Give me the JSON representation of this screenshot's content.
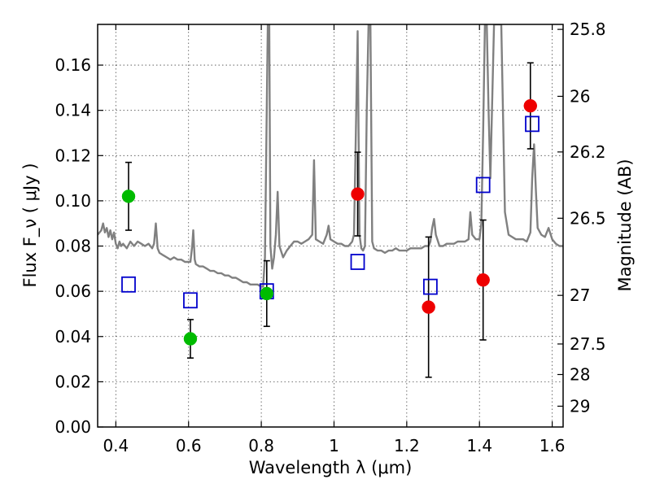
{
  "chart_data": {
    "type": "scatter",
    "xlabel": "Wavelength  λ (μm)",
    "ylabel": "Flux  F_ν  ( μJy )",
    "ylabel_right": "Magnitude (AB)",
    "xlim": [
      0.35,
      1.63
    ],
    "ylim": [
      0.0,
      0.178
    ],
    "grid": true,
    "x_ticks": [
      0.4,
      0.6,
      0.8,
      1.0,
      1.2,
      1.4,
      1.6
    ],
    "x_tick_labels": [
      "0.4",
      "0.6",
      "0.8",
      "1",
      "1.2",
      "1.4",
      "1.6"
    ],
    "y_ticks": [
      0.0,
      0.02,
      0.04,
      0.06,
      0.08,
      0.1,
      0.12,
      0.14,
      0.16
    ],
    "y_tick_labels": [
      "0.00",
      "0.02",
      "0.04",
      "0.06",
      "0.08",
      "0.10",
      "0.12",
      "0.14",
      "0.16"
    ],
    "right_ticks": [
      {
        "mag": "25.8",
        "flux": 0.1758
      },
      {
        "mag": "26",
        "flux": 0.1462
      },
      {
        "mag": "26.2",
        "flux": 0.1216
      },
      {
        "mag": "26.5",
        "flux": 0.0923
      },
      {
        "mag": "27",
        "flux": 0.0582
      },
      {
        "mag": "27.5",
        "flux": 0.0367
      },
      {
        "mag": "28",
        "flux": 0.0232
      },
      {
        "mag": "29",
        "flux": 0.0092
      }
    ],
    "model_spectrum": {
      "color": "#808080",
      "points": [
        [
          0.35,
          0.085
        ],
        [
          0.36,
          0.087
        ],
        [
          0.365,
          0.09
        ],
        [
          0.37,
          0.086
        ],
        [
          0.375,
          0.088
        ],
        [
          0.38,
          0.084
        ],
        [
          0.385,
          0.087
        ],
        [
          0.39,
          0.083
        ],
        [
          0.395,
          0.086
        ],
        [
          0.4,
          0.081
        ],
        [
          0.405,
          0.079
        ],
        [
          0.41,
          0.082
        ],
        [
          0.415,
          0.08
        ],
        [
          0.42,
          0.081
        ],
        [
          0.43,
          0.079
        ],
        [
          0.44,
          0.082
        ],
        [
          0.45,
          0.08
        ],
        [
          0.46,
          0.082
        ],
        [
          0.47,
          0.081
        ],
        [
          0.48,
          0.08
        ],
        [
          0.49,
          0.081
        ],
        [
          0.5,
          0.079
        ],
        [
          0.505,
          0.081
        ],
        [
          0.51,
          0.09
        ],
        [
          0.515,
          0.079
        ],
        [
          0.52,
          0.077
        ],
        [
          0.53,
          0.076
        ],
        [
          0.54,
          0.075
        ],
        [
          0.55,
          0.074
        ],
        [
          0.56,
          0.075
        ],
        [
          0.57,
          0.074
        ],
        [
          0.58,
          0.074
        ],
        [
          0.59,
          0.073
        ],
        [
          0.6,
          0.073
        ],
        [
          0.605,
          0.073
        ],
        [
          0.61,
          0.08
        ],
        [
          0.613,
          0.087
        ],
        [
          0.617,
          0.074
        ],
        [
          0.62,
          0.072
        ],
        [
          0.63,
          0.071
        ],
        [
          0.64,
          0.071
        ],
        [
          0.65,
          0.07
        ],
        [
          0.66,
          0.069
        ],
        [
          0.67,
          0.069
        ],
        [
          0.68,
          0.068
        ],
        [
          0.69,
          0.068
        ],
        [
          0.7,
          0.067
        ],
        [
          0.71,
          0.067
        ],
        [
          0.72,
          0.066
        ],
        [
          0.73,
          0.066
        ],
        [
          0.74,
          0.065
        ],
        [
          0.75,
          0.064
        ],
        [
          0.76,
          0.064
        ],
        [
          0.77,
          0.063
        ],
        [
          0.78,
          0.063
        ],
        [
          0.79,
          0.063
        ],
        [
          0.8,
          0.062
        ],
        [
          0.805,
          0.062
        ],
        [
          0.81,
          0.075
        ],
        [
          0.815,
          0.14
        ],
        [
          0.818,
          0.178
        ],
        [
          0.822,
          0.178
        ],
        [
          0.825,
          0.08
        ],
        [
          0.83,
          0.07
        ],
        [
          0.835,
          0.075
        ],
        [
          0.84,
          0.085
        ],
        [
          0.845,
          0.104
        ],
        [
          0.85,
          0.08
        ],
        [
          0.86,
          0.075
        ],
        [
          0.87,
          0.078
        ],
        [
          0.88,
          0.08
        ],
        [
          0.89,
          0.082
        ],
        [
          0.9,
          0.082
        ],
        [
          0.91,
          0.081
        ],
        [
          0.92,
          0.082
        ],
        [
          0.93,
          0.083
        ],
        [
          0.94,
          0.085
        ],
        [
          0.945,
          0.118
        ],
        [
          0.95,
          0.083
        ],
        [
          0.96,
          0.082
        ],
        [
          0.97,
          0.081
        ],
        [
          0.98,
          0.085
        ],
        [
          0.985,
          0.089
        ],
        [
          0.99,
          0.083
        ],
        [
          1.0,
          0.082
        ],
        [
          1.01,
          0.081
        ],
        [
          1.02,
          0.081
        ],
        [
          1.03,
          0.08
        ],
        [
          1.04,
          0.08
        ],
        [
          1.05,
          0.082
        ],
        [
          1.055,
          0.085
        ],
        [
          1.06,
          0.13
        ],
        [
          1.065,
          0.175
        ],
        [
          1.07,
          0.085
        ],
        [
          1.075,
          0.079
        ],
        [
          1.08,
          0.078
        ],
        [
          1.085,
          0.08
        ],
        [
          1.09,
          0.14
        ],
        [
          1.095,
          0.178
        ],
        [
          1.1,
          0.178
        ],
        [
          1.105,
          0.082
        ],
        [
          1.11,
          0.079
        ],
        [
          1.12,
          0.078
        ],
        [
          1.13,
          0.078
        ],
        [
          1.14,
          0.077
        ],
        [
          1.15,
          0.078
        ],
        [
          1.16,
          0.078
        ],
        [
          1.17,
          0.079
        ],
        [
          1.18,
          0.078
        ],
        [
          1.19,
          0.078
        ],
        [
          1.2,
          0.078
        ],
        [
          1.21,
          0.079
        ],
        [
          1.22,
          0.079
        ],
        [
          1.23,
          0.079
        ],
        [
          1.24,
          0.079
        ],
        [
          1.25,
          0.08
        ],
        [
          1.26,
          0.08
        ],
        [
          1.265,
          0.082
        ],
        [
          1.27,
          0.088
        ],
        [
          1.275,
          0.092
        ],
        [
          1.28,
          0.085
        ],
        [
          1.29,
          0.08
        ],
        [
          1.3,
          0.08
        ],
        [
          1.31,
          0.081
        ],
        [
          1.32,
          0.081
        ],
        [
          1.33,
          0.081
        ],
        [
          1.34,
          0.082
        ],
        [
          1.35,
          0.082
        ],
        [
          1.36,
          0.082
        ],
        [
          1.37,
          0.083
        ],
        [
          1.375,
          0.095
        ],
        [
          1.38,
          0.085
        ],
        [
          1.39,
          0.083
        ],
        [
          1.4,
          0.083
        ],
        [
          1.405,
          0.09
        ],
        [
          1.41,
          0.13
        ],
        [
          1.415,
          0.178
        ],
        [
          1.42,
          0.178
        ],
        [
          1.425,
          0.14
        ],
        [
          1.43,
          0.11
        ],
        [
          1.44,
          0.178
        ],
        [
          1.46,
          0.178
        ],
        [
          1.47,
          0.095
        ],
        [
          1.48,
          0.085
        ],
        [
          1.49,
          0.084
        ],
        [
          1.5,
          0.083
        ],
        [
          1.51,
          0.083
        ],
        [
          1.52,
          0.083
        ],
        [
          1.53,
          0.082
        ],
        [
          1.54,
          0.086
        ],
        [
          1.545,
          0.11
        ],
        [
          1.55,
          0.125
        ],
        [
          1.555,
          0.105
        ],
        [
          1.56,
          0.088
        ],
        [
          1.57,
          0.085
        ],
        [
          1.58,
          0.084
        ],
        [
          1.59,
          0.088
        ],
        [
          1.6,
          0.083
        ],
        [
          1.61,
          0.081
        ],
        [
          1.62,
          0.08
        ],
        [
          1.63,
          0.08
        ]
      ]
    },
    "model_points": {
      "color": "#0000cc",
      "points": [
        [
          0.435,
          0.063
        ],
        [
          0.605,
          0.056
        ],
        [
          0.815,
          0.06
        ],
        [
          1.065,
          0.073
        ],
        [
          1.265,
          0.062
        ],
        [
          1.41,
          0.107
        ],
        [
          1.545,
          0.134
        ]
      ]
    },
    "observed_points": [
      {
        "x": 0.435,
        "y": 0.102,
        "err_lo": 0.015,
        "err_hi": 0.015,
        "color": "#00bb00"
      },
      {
        "x": 0.605,
        "y": 0.039,
        "err_lo": 0.0085,
        "err_hi": 0.0085,
        "color": "#00bb00"
      },
      {
        "x": 0.815,
        "y": 0.059,
        "err_lo": 0.0145,
        "err_hi": 0.0145,
        "color": "#00bb00"
      },
      {
        "x": 1.065,
        "y": 0.103,
        "err_lo": 0.0185,
        "err_hi": 0.0185,
        "color": "#ee0000"
      },
      {
        "x": 1.26,
        "y": 0.053,
        "err_lo": 0.031,
        "err_hi": 0.031,
        "color": "#ee0000"
      },
      {
        "x": 1.41,
        "y": 0.065,
        "err_lo": 0.0265,
        "err_hi": 0.0265,
        "color": "#ee0000"
      },
      {
        "x": 1.54,
        "y": 0.142,
        "err_lo": 0.019,
        "err_hi": 0.019,
        "color": "#ee0000"
      }
    ]
  }
}
